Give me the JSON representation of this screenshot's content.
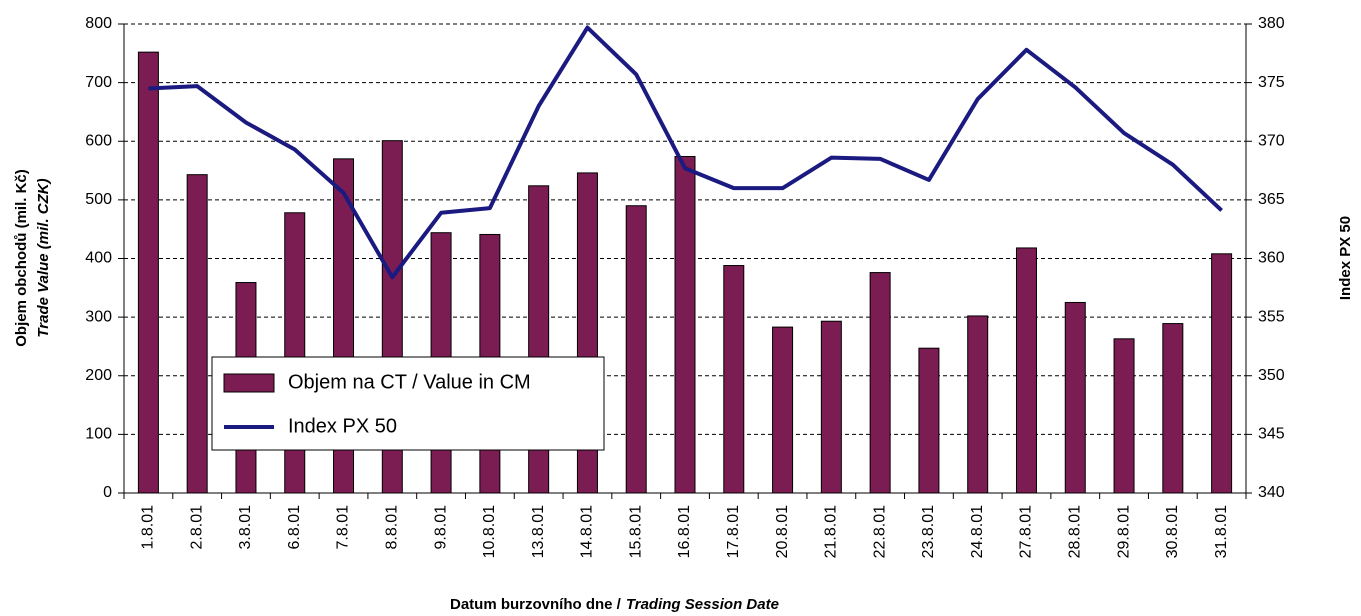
{
  "chart_data": {
    "type": "bar-line",
    "ylabel": "Objem obchodů (mil. Kč)",
    "ylabel_en": "Trade Value (mil. CZK)",
    "y2label": "Index PX 50",
    "xlabel": "Datum burzovního dne /",
    "xlabel_en": "Trading Session Date",
    "categories": [
      "1.8.01",
      "2.8.01",
      "3.8.01",
      "6.8.01",
      "7.8.01",
      "8.8.01",
      "9.8.01",
      "10.8.01",
      "13.8.01",
      "14.8.01",
      "15.8.01",
      "16.8.01",
      "17.8.01",
      "20.8.01",
      "21.8.01",
      "22.8.01",
      "23.8.01",
      "24.8.01",
      "27.8.01",
      "28.8.01",
      "29.8.01",
      "30.8.01",
      "31.8.01"
    ],
    "series": [
      {
        "name": "Objem na CT / Value in CM",
        "type": "bar",
        "color": "#7b1c52",
        "values": [
          752,
          543,
          359,
          478,
          570,
          601,
          444,
          441,
          524,
          546,
          490,
          574,
          388,
          283,
          293,
          376,
          247,
          302,
          418,
          325,
          263,
          289,
          408
        ]
      },
      {
        "name": "Index PX 50",
        "type": "line",
        "axis": "y2",
        "color": "#1a1a80",
        "values": [
          374.5,
          374.7,
          371.6,
          369.3,
          365.6,
          358.4,
          363.9,
          364.3,
          373.0,
          379.7,
          375.7,
          367.7,
          366.0,
          366.0,
          368.6,
          368.5,
          366.7,
          373.6,
          377.8,
          374.6,
          370.7,
          368.0,
          364.1
        ]
      }
    ],
    "ylim": [
      0,
      800
    ],
    "yticks": [
      0,
      100,
      200,
      300,
      400,
      500,
      600,
      700,
      800
    ],
    "y2lim": [
      340,
      380
    ],
    "y2ticks": [
      340,
      345,
      350,
      355,
      360,
      365,
      370,
      375,
      380
    ],
    "grid": true
  }
}
